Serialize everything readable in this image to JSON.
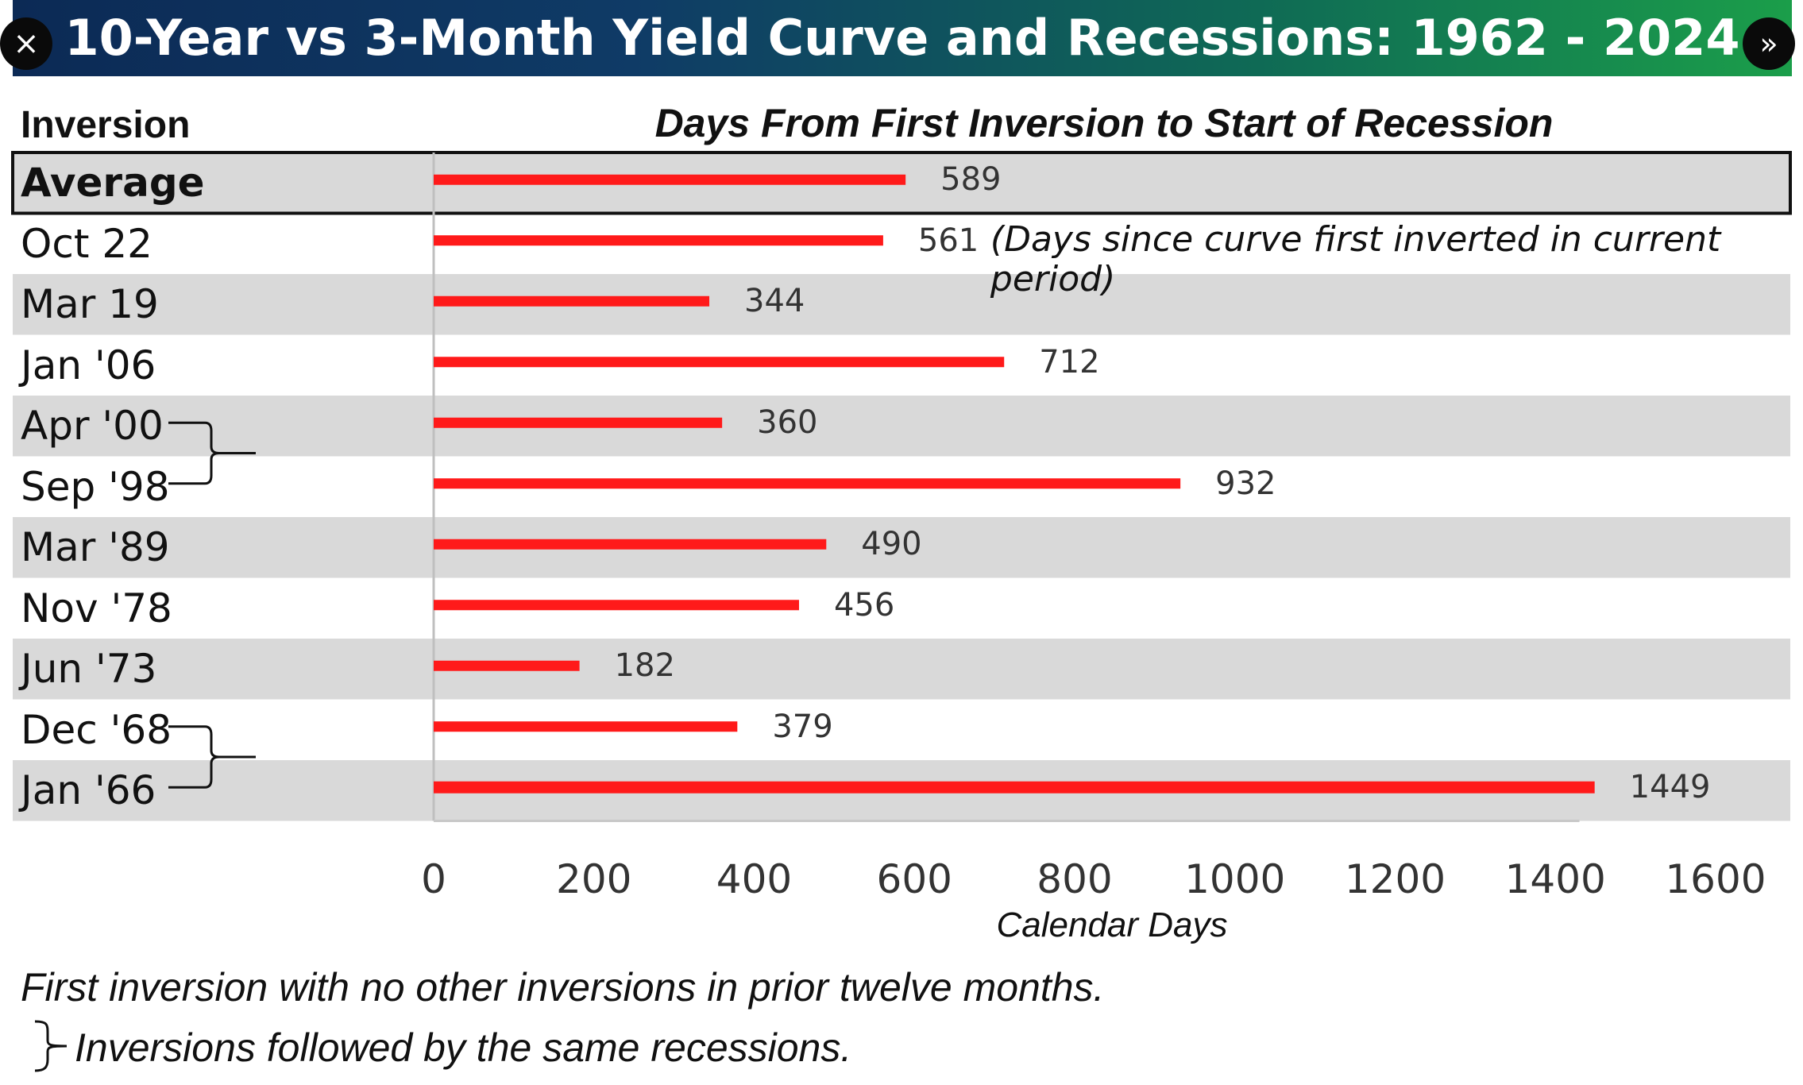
{
  "title": "10-Year vs 3-Month Yield Curve and Recessions: 1962 - 2024",
  "buttons": {
    "close_icon": "×",
    "next_icon": "»"
  },
  "headers": {
    "left": "Inversion",
    "right": "Days From First Inversion to Start of Recession"
  },
  "colors": {
    "bar": "#ff1a1a",
    "row_shade": "#d9d9d9",
    "row_plain": "#ffffff"
  },
  "chart_data": {
    "type": "bar",
    "orientation": "horizontal",
    "categories": [
      "Average",
      "Oct 22",
      "Mar 19",
      "Jan '06",
      "Apr '00",
      "Sep '98",
      "Mar '89",
      "Nov '78",
      "Jun '73",
      "Dec '68",
      "Jan '66"
    ],
    "values": [
      589,
      561,
      344,
      712,
      360,
      932,
      490,
      456,
      182,
      379,
      1449
    ],
    "value_labels": [
      "589",
      "561",
      "344",
      "712",
      "360",
      "932",
      "490",
      "456",
      "182",
      "379",
      "1449"
    ],
    "annotations": [
      {
        "category": "Oct 22",
        "text": "(Days since curve first inverted in current period)"
      }
    ],
    "brackets": [
      [
        "Apr '00",
        "Sep '98"
      ],
      [
        "Dec '68",
        "Jan '66"
      ]
    ],
    "xlabel": "Calendar Days",
    "ylabel": "Inversion",
    "xlim": [
      0,
      1600
    ],
    "xticks": [
      "0",
      "200",
      "400",
      "600",
      "800",
      "1000",
      "1200",
      "1400",
      "1600"
    ],
    "grid": false
  },
  "footnotes": {
    "line1": "First inversion with no other inversions in prior twelve months.",
    "line2": "Inversions followed by the same recessions."
  }
}
